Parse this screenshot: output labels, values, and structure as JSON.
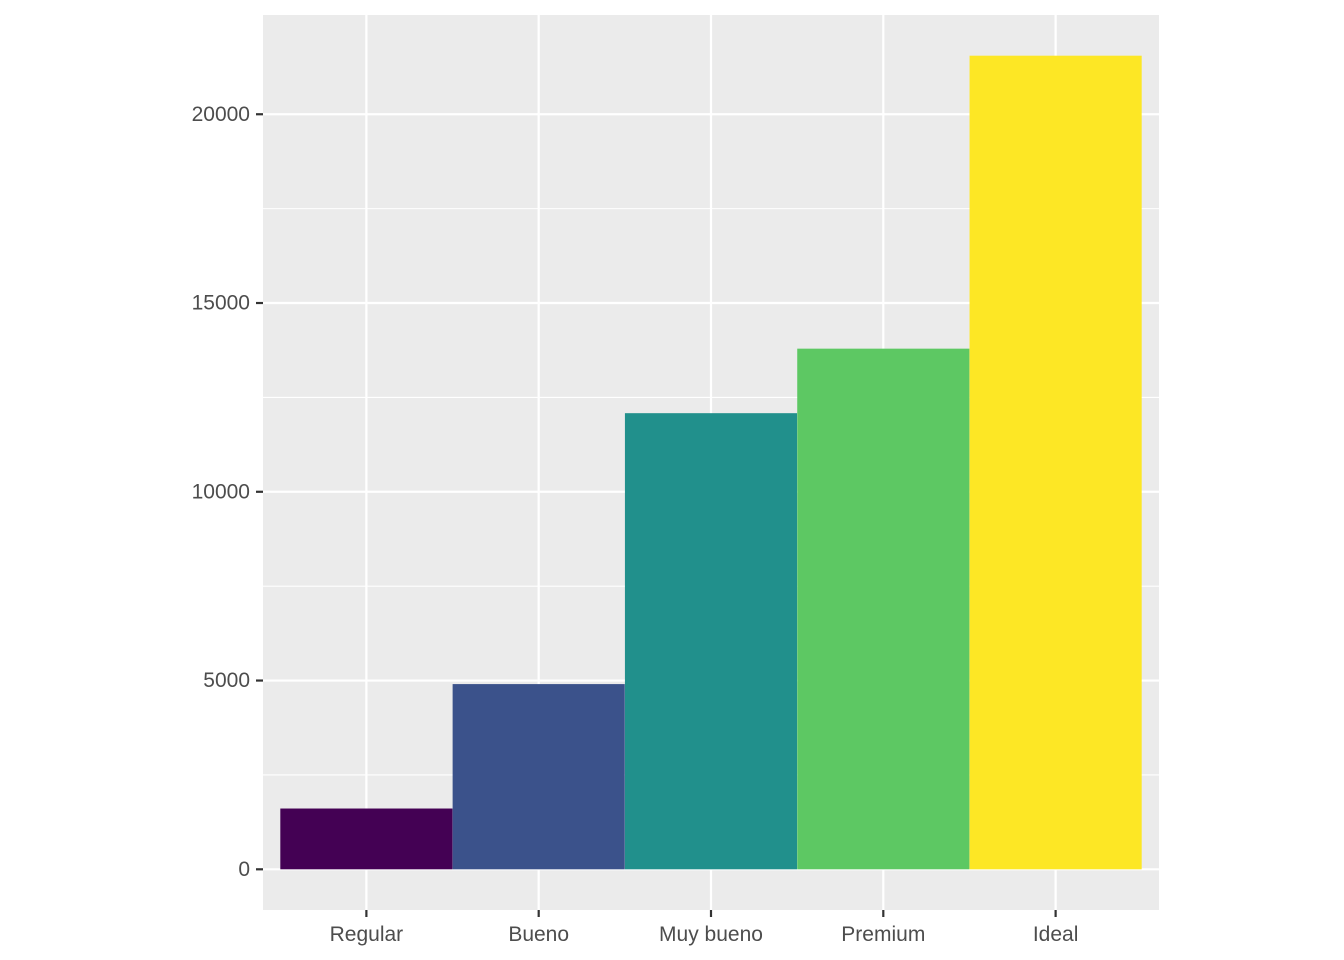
{
  "chart_data": {
    "type": "bar",
    "categories": [
      "Regular",
      "Bueno",
      "Muy bueno",
      "Premium",
      "Ideal"
    ],
    "values": [
      1610,
      4906,
      12082,
      13791,
      21551
    ],
    "colors": [
      "#440154",
      "#3B528B",
      "#21908C",
      "#5DC863",
      "#FDE725"
    ],
    "ylim": [
      -1078,
      22629
    ],
    "yticks": [
      0,
      5000,
      10000,
      15000,
      20000
    ],
    "yminor": [
      2500,
      7500,
      12500,
      17500
    ],
    "grid": true,
    "panel_background": "#EBEBEB",
    "title": "",
    "xlabel": "",
    "ylabel": ""
  }
}
